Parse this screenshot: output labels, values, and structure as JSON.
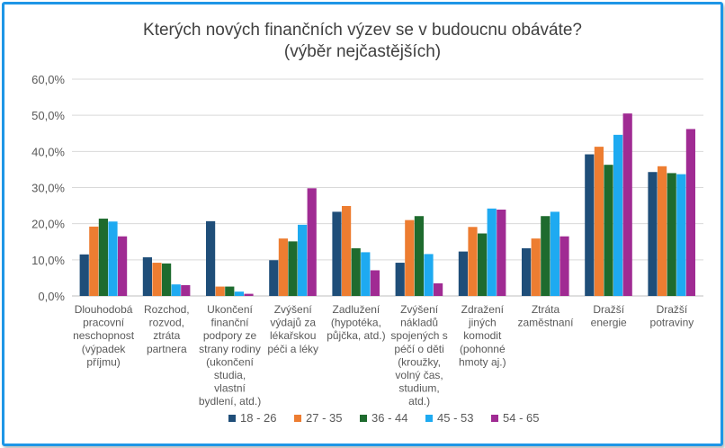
{
  "chart_data": {
    "type": "bar",
    "title_line1": "Kterých nových finančních výzev  se v budoucnu obáváte?",
    "title_line2": "(výběr nejčastějších)",
    "xlabel": "",
    "ylabel": "",
    "ylim": [
      0,
      60
    ],
    "yticks": [
      "0,0%",
      "10,0%",
      "20,0%",
      "30,0%",
      "40,0%",
      "50,0%",
      "60,0%"
    ],
    "grid": true,
    "legend_position": "bottom",
    "categories": [
      [
        "Dlouhodobá",
        "pracovní",
        "neschopnost",
        "(výpadek",
        "příjmu)"
      ],
      [
        "Rozchod,",
        "rozvod,",
        "ztráta",
        "partnera"
      ],
      [
        "Ukončení",
        "finanční",
        "podpory ze",
        "strany rodiny",
        "(ukončení",
        "studia,",
        "vlastní",
        "bydlení, atd.)"
      ],
      [
        "Zvýšení",
        "výdajů za",
        "lékařskou",
        "péči a léky"
      ],
      [
        "Zadlužení",
        "(hypotéka,",
        "půjčka, atd.)"
      ],
      [
        "Zvýšení",
        "nákladů",
        "spojených s",
        "péčí o děti",
        "(kroužky,",
        "volný čas,",
        "studium,",
        "atd.)"
      ],
      [
        "Zdražení",
        "jiných",
        "komodit",
        "(pohonné",
        "hmoty aj.)"
      ],
      [
        "Ztráta",
        "zaměstnaní"
      ],
      [
        "Dražší",
        "energie"
      ],
      [
        "Dražší",
        "potraviny"
      ]
    ],
    "series": [
      {
        "name": "18 - 26",
        "color": "#1f4e79",
        "values": [
          11.5,
          10.7,
          20.7,
          9.9,
          23.3,
          9.2,
          12.3,
          13.2,
          39.2,
          34.3
        ]
      },
      {
        "name": "27 - 35",
        "color": "#ed7d31",
        "values": [
          19.2,
          9.2,
          2.6,
          15.9,
          24.9,
          21.0,
          19.1,
          15.9,
          41.3,
          35.9
        ]
      },
      {
        "name": "36 - 44",
        "color": "#1e6b2e",
        "values": [
          21.4,
          9.0,
          2.6,
          15.1,
          13.2,
          22.1,
          17.3,
          22.1,
          36.3,
          34.0
        ]
      },
      {
        "name": "45 - 53",
        "color": "#1eaaf1",
        "values": [
          20.6,
          3.2,
          1.2,
          19.7,
          12.1,
          11.6,
          24.2,
          23.3,
          44.6,
          33.7
        ]
      },
      {
        "name": "54 - 65",
        "color": "#a02b93",
        "values": [
          16.5,
          3.0,
          0.6,
          29.8,
          7.1,
          3.5,
          23.9,
          16.5,
          50.5,
          46.2
        ]
      }
    ]
  }
}
